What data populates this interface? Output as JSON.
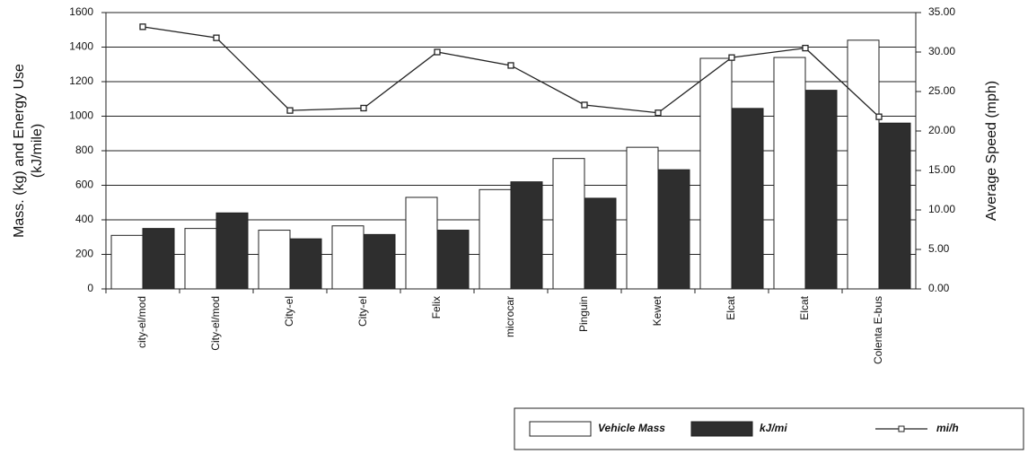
{
  "chart_data": {
    "type": "bar",
    "ylabel_lines": [
      "Mass. (kg) and Energy Use",
      "(kJ/mile)"
    ],
    "y2label": "Average Speed (mph)",
    "categories": [
      "city-el/mod",
      "City-el/mod",
      "City-el",
      "City-el",
      "Felix",
      "microcar",
      "Pinguin",
      "Kewet",
      "Elcat",
      "Elcat",
      "Colenta E-bus"
    ],
    "series": [
      {
        "name": "Vehicle Mass",
        "type": "bar",
        "color": "#ffffff",
        "values": [
          310,
          350,
          340,
          365,
          530,
          575,
          755,
          820,
          1335,
          1340,
          1440
        ]
      },
      {
        "name": "kJ/mi",
        "type": "bar",
        "color": "#2e2e2e",
        "values": [
          350,
          440,
          290,
          315,
          340,
          620,
          525,
          690,
          1045,
          1150,
          960
        ]
      },
      {
        "name": "mi/h",
        "type": "line",
        "axis": "y2",
        "color": "#222222",
        "values": [
          33.2,
          31.8,
          22.6,
          22.9,
          30.0,
          28.3,
          23.3,
          22.3,
          29.3,
          30.5,
          21.8
        ]
      }
    ],
    "ylim": [
      0,
      1600
    ],
    "yticks": [
      0,
      200,
      400,
      600,
      800,
      1000,
      1200,
      1400,
      1600
    ],
    "y2lim": [
      0,
      35
    ],
    "y2ticks": [
      {
        "value": 0,
        "label": "0.00"
      },
      {
        "value": 5,
        "label": "5.00"
      },
      {
        "value": 10,
        "label": "10.00"
      },
      {
        "value": 15,
        "label": "15.00"
      },
      {
        "value": 20,
        "label": "20.00"
      },
      {
        "value": 25,
        "label": "25.00"
      },
      {
        "value": 30,
        "label": "30.00"
      },
      {
        "value": 35,
        "label": "35.00"
      }
    ],
    "grid": true
  }
}
